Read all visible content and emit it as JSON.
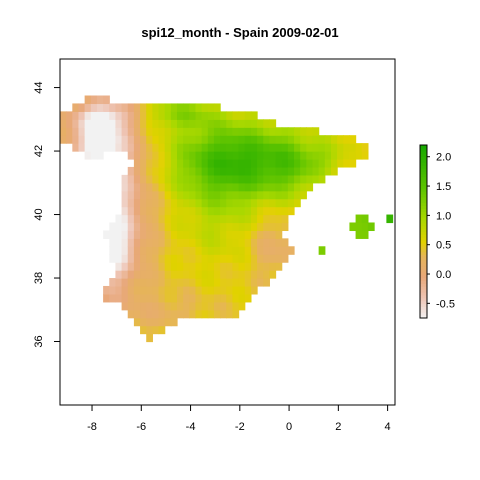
{
  "chart_data": {
    "type": "heatmap",
    "title": "spi12_month - Spain 2009-02-01",
    "xlim": [
      -9.3,
      4.3
    ],
    "ylim": [
      34.0,
      44.9
    ],
    "x_ticks": [
      -8,
      -6,
      -4,
      -2,
      0,
      2,
      4
    ],
    "y_ticks": [
      36,
      38,
      40,
      42,
      44
    ],
    "grid": false,
    "cell_size_deg": 0.25,
    "value_range": [
      -0.75,
      2.2
    ],
    "colorbar": {
      "ticks": [
        2.0,
        1.5,
        1.0,
        0.5,
        0.0,
        -0.5
      ],
      "tick_labels": [
        "2.0",
        "1.5",
        "1.0",
        "0.5",
        "0.0",
        "-0.5"
      ],
      "placement": "right",
      "colors": [
        "#f2f2f2",
        "#eec5b4",
        "#e8a87a",
        "#e6b35a",
        "#e2d300",
        "#a8d800",
        "#5fc400",
        "#16a800"
      ]
    },
    "regions": [
      {
        "name": "peninsula",
        "fill": "interpolated"
      },
      {
        "name": "balearic-islands",
        "fill": "interpolated"
      }
    ]
  }
}
